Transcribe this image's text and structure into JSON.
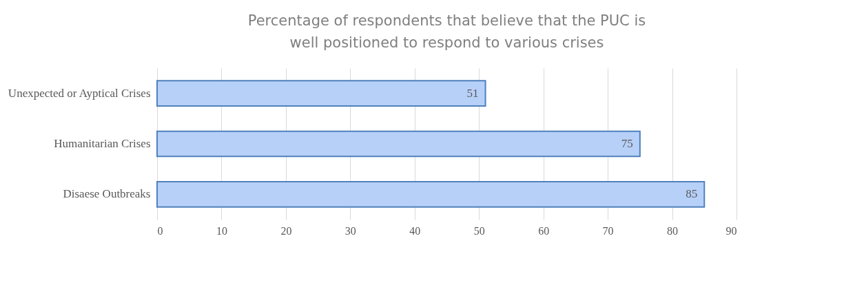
{
  "chart_data": {
    "type": "bar",
    "orientation": "horizontal",
    "title": "Percentage of respondents that believe that the PUC is well positioned to respond to various crises",
    "categories": [
      "Unexpected or Ayptical Crises",
      "Humanitarian Crises",
      "Disaese Outbreaks"
    ],
    "values": [
      51,
      75,
      85
    ],
    "color": "#b7d0f8",
    "xlim": [
      0,
      90
    ],
    "xticks": [
      0,
      10,
      20,
      30,
      40,
      50,
      60,
      70,
      80,
      90
    ],
    "grid": "x",
    "data_labels": true
  }
}
